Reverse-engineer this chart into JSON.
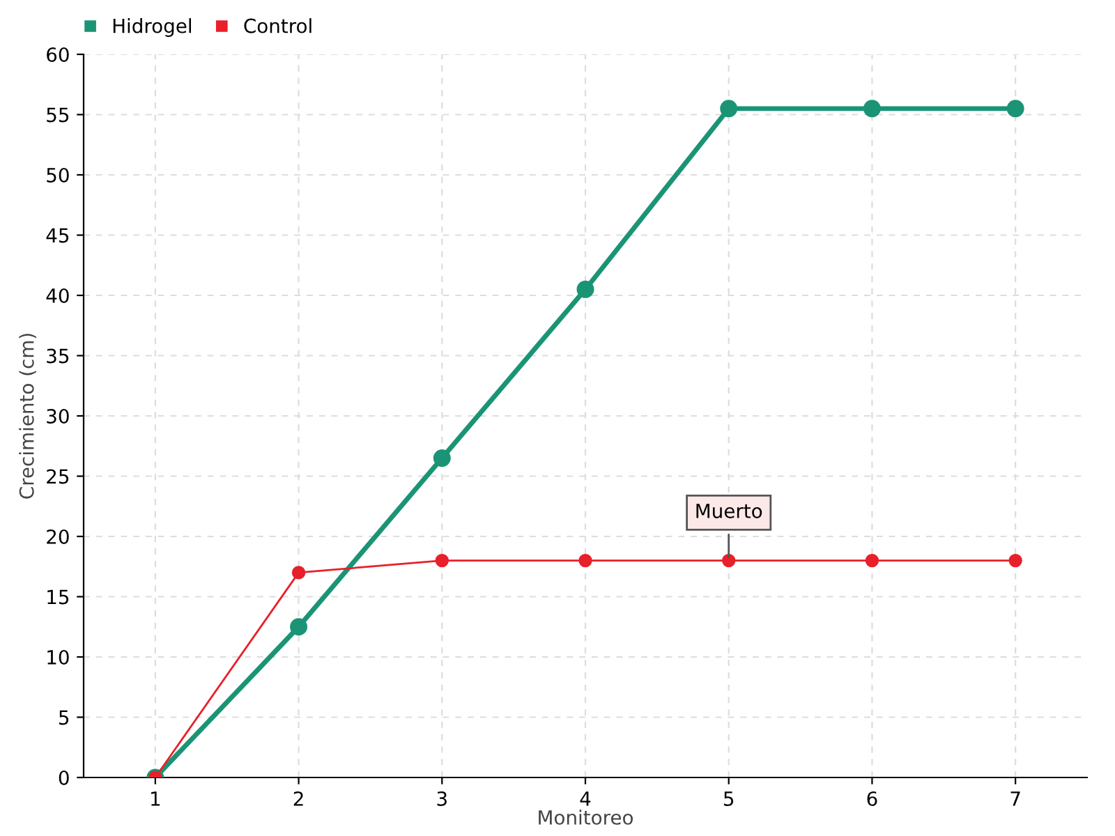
{
  "chart_data": {
    "type": "line",
    "xlabel": "Monitoreo",
    "ylabel": "Crecimiento (cm)",
    "categories": [
      "1",
      "2",
      "3",
      "4",
      "5",
      "6",
      "7"
    ],
    "series": [
      {
        "name": "Hidrogel",
        "color": "#1b9475",
        "values": [
          0,
          12.5,
          26.5,
          40.5,
          55.5,
          55.5,
          55.5
        ]
      },
      {
        "name": "Control",
        "color": "#e8202a",
        "values": [
          0,
          17,
          18,
          18,
          18,
          18,
          18
        ]
      }
    ],
    "ylim": [
      0,
      60
    ],
    "yticks": [
      0,
      5,
      10,
      15,
      20,
      25,
      30,
      35,
      40,
      45,
      50,
      55,
      60
    ],
    "grid": true,
    "legend": "top left",
    "marker": "circle",
    "line_style": "solid",
    "annotations": [
      {
        "text": "Muerto",
        "x": "5",
        "y": 18
      }
    ]
  }
}
